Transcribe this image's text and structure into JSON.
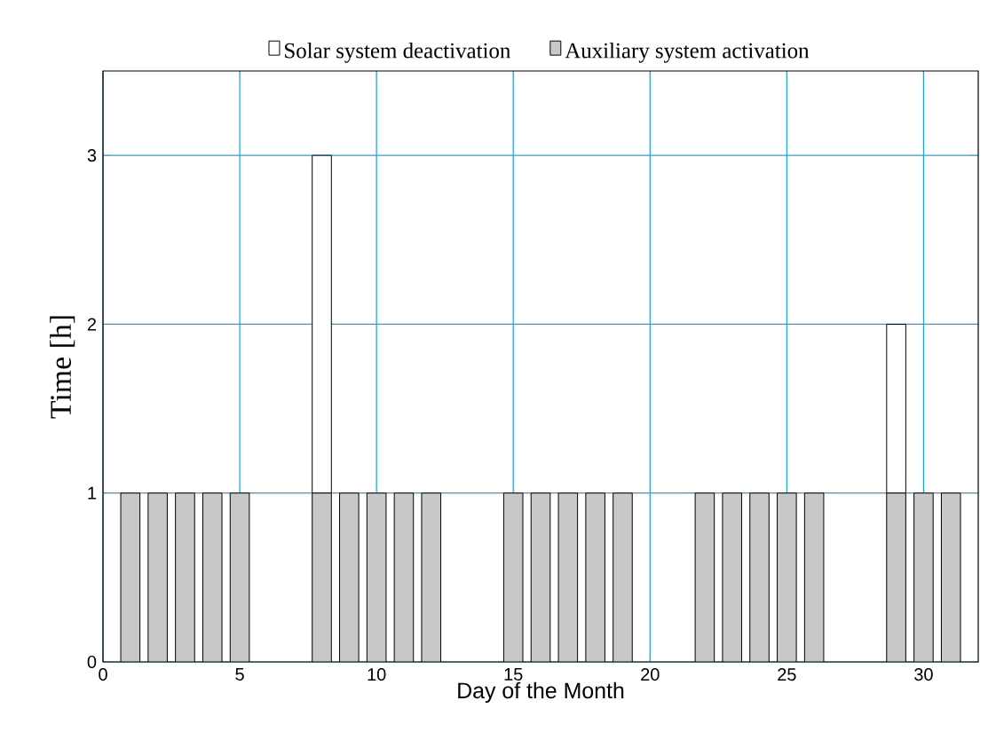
{
  "chart_data": {
    "type": "bar",
    "stacked": true,
    "xlabel": "Day of the Month",
    "ylabel": "Time [h]",
    "xlim": [
      0,
      32
    ],
    "ylim": [
      0,
      3.5
    ],
    "xticks": [
      0,
      5,
      10,
      15,
      20,
      25,
      30
    ],
    "yticks": [
      0,
      1,
      2,
      3
    ],
    "grid": true,
    "legend": "top",
    "x": [
      1,
      2,
      3,
      4,
      5,
      8,
      9,
      10,
      11,
      12,
      15,
      16,
      17,
      18,
      19,
      22,
      23,
      24,
      25,
      26,
      29,
      30,
      31
    ],
    "series": [
      {
        "name": "Auxiliary system activation",
        "color": "#c8c8c8",
        "values": [
          1,
          1,
          1,
          1,
          1,
          1,
          1,
          1,
          1,
          1,
          1,
          1,
          1,
          1,
          1,
          1,
          1,
          1,
          1,
          1,
          1,
          1,
          1
        ]
      },
      {
        "name": "Solar system deactivation",
        "color": "#ffffff",
        "values": [
          null,
          null,
          null,
          null,
          null,
          2,
          null,
          null,
          null,
          null,
          null,
          null,
          null,
          null,
          null,
          null,
          null,
          null,
          null,
          null,
          1,
          null,
          null
        ]
      }
    ]
  }
}
